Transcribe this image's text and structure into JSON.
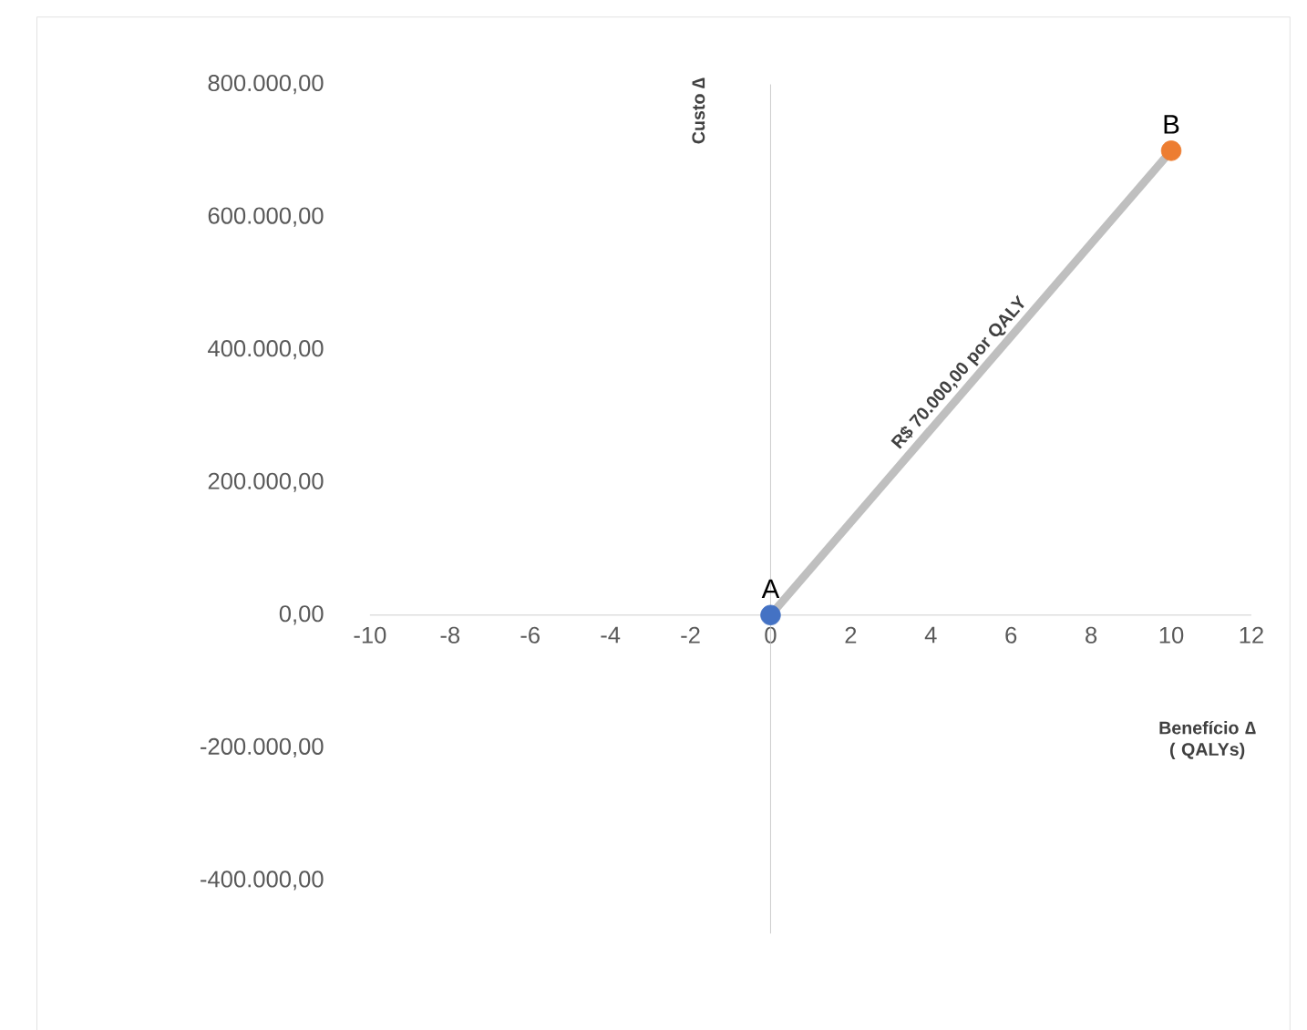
{
  "chart_data": {
    "type": "scatter",
    "xlabel": "Benefício ∆ ( QALYs)",
    "ylabel": "Custo ∆",
    "marker": "circle",
    "series": [
      {
        "type": "line",
        "marker": "none",
        "color": "#bfbfbf",
        "values": [
          0,
          700000
        ]
      },
      {
        "name": "A",
        "color": "#4472c4",
        "values": [
          0,
          null
        ]
      },
      {
        "name": "B",
        "color": "#ed7d31",
        "values": [
          null,
          700000
        ]
      }
    ],
    "x": [
      0,
      10
    ],
    "annotations": [
      {
        "text": "R$ 70.000,00 por QALY",
        "x": 5,
        "y": 350000
      }
    ],
    "xlim": [
      -10,
      12
    ],
    "ylim": [
      -480000,
      800000
    ],
    "xticks": [
      -10,
      -8,
      -6,
      -4,
      -2,
      0,
      2,
      4,
      6,
      8,
      10,
      12
    ],
    "yticks": [
      {
        "value": -400000,
        "label": "-400.000,00"
      },
      {
        "value": -200000,
        "label": "-200.000,00"
      },
      {
        "value": 0,
        "label": "0,00"
      },
      {
        "value": 200000,
        "label": "200.000,00"
      },
      {
        "value": 400000,
        "label": "400.000,00"
      },
      {
        "value": 600000,
        "label": "600.000,00"
      },
      {
        "value": 800000,
        "label": "800.000,00"
      }
    ]
  }
}
